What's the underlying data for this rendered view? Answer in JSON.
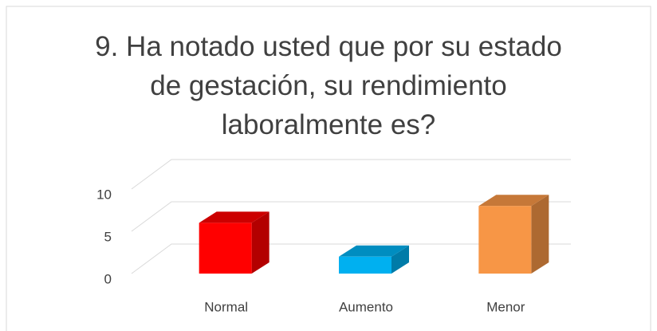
{
  "chart_data": {
    "type": "bar3d",
    "title": "9. Ha notado usted que por su estado de gestación, su rendimiento laboralmente es?",
    "categories": [
      "Normal",
      "Aumento",
      "Menor"
    ],
    "values": [
      6,
      2,
      8
    ],
    "colors": [
      "#ff0000",
      "#00b0f0",
      "#f79646"
    ],
    "ylim": [
      0,
      10
    ],
    "yticks": [
      0,
      5,
      10
    ],
    "grid": true
  }
}
